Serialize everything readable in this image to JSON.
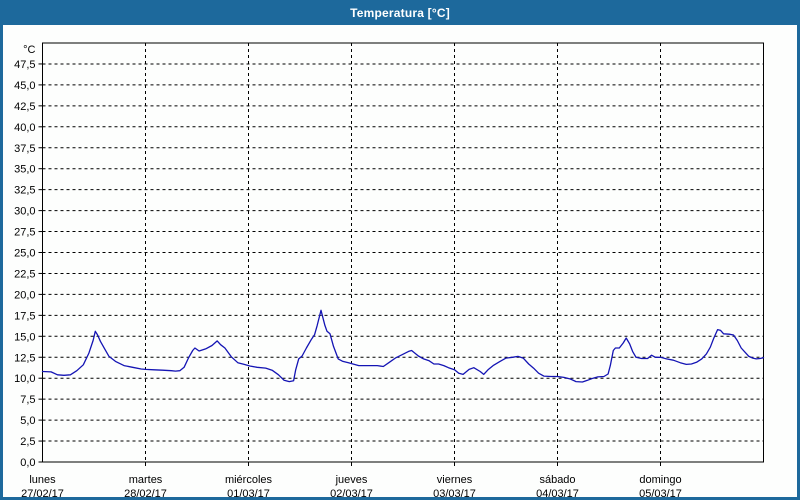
{
  "window": {
    "title": "Temperatura [°C]"
  },
  "colors": {
    "titlebar_bg": "#1d699c",
    "titlebar_text": "#ffffff",
    "window_border": "#1d699c",
    "plot_bg": "#fdfefd",
    "plot_border": "#000000",
    "gridline": "#000000",
    "series_line": "#1414b4",
    "tick_text": "#000000"
  },
  "chart_data": {
    "type": "line",
    "title": "Temperatura [°C]",
    "y_unit_label": "°C",
    "ylabel": "",
    "xlabel": "",
    "ylim": [
      0,
      50
    ],
    "y_tick_step": 2.5,
    "y_tick_labels": [
      "0,0",
      "2,5",
      "5,0",
      "7,5",
      "10,0",
      "12,5",
      "15,0",
      "17,5",
      "20,0",
      "22,5",
      "25,0",
      "27,5",
      "30,0",
      "32,5",
      "35,0",
      "37,5",
      "40,0",
      "42,5",
      "45,0",
      "47,5"
    ],
    "grid": "dashed",
    "legend": "none",
    "x_total_hours": 168,
    "x_days": [
      {
        "weekday": "lunes",
        "date": "27/02/17"
      },
      {
        "weekday": "martes",
        "date": "28/02/17"
      },
      {
        "weekday": "miércoles",
        "date": "01/03/17"
      },
      {
        "weekday": "jueves",
        "date": "02/03/17"
      },
      {
        "weekday": "viernes",
        "date": "03/03/17"
      },
      {
        "weekday": "sábado",
        "date": "04/03/17"
      },
      {
        "weekday": "domingo",
        "date": "05/03/17"
      }
    ],
    "series": [
      {
        "name": "Temperatura",
        "color": "#1414b4",
        "points_hours_temp": [
          [
            0,
            10.8
          ],
          [
            2,
            10.75
          ],
          [
            3.5,
            10.4
          ],
          [
            5,
            10.35
          ],
          [
            6.5,
            10.4
          ],
          [
            8,
            10.9
          ],
          [
            9.5,
            11.6
          ],
          [
            10.8,
            13.0
          ],
          [
            11.8,
            14.5
          ],
          [
            12.3,
            15.6
          ],
          [
            12.8,
            15.2
          ],
          [
            13.5,
            14.4
          ],
          [
            14.5,
            13.5
          ],
          [
            15.5,
            12.6
          ],
          [
            17,
            12.0
          ],
          [
            19,
            11.5
          ],
          [
            21,
            11.3
          ],
          [
            23,
            11.1
          ],
          [
            24,
            11.05
          ],
          [
            26,
            11.0
          ],
          [
            28,
            10.95
          ],
          [
            30,
            10.9
          ],
          [
            31,
            10.85
          ],
          [
            32,
            10.9
          ],
          [
            33,
            11.3
          ],
          [
            34,
            12.4
          ],
          [
            35,
            13.3
          ],
          [
            35.5,
            13.6
          ],
          [
            36.5,
            13.25
          ],
          [
            38,
            13.5
          ],
          [
            39.5,
            13.9
          ],
          [
            40.7,
            14.45
          ],
          [
            41.5,
            14.0
          ],
          [
            42.5,
            13.6
          ],
          [
            44,
            12.55
          ],
          [
            45.5,
            11.85
          ],
          [
            47,
            11.65
          ],
          [
            48.3,
            11.45
          ],
          [
            50,
            11.3
          ],
          [
            52,
            11.2
          ],
          [
            53.5,
            10.95
          ],
          [
            55,
            10.4
          ],
          [
            56.3,
            9.75
          ],
          [
            57.5,
            9.6
          ],
          [
            58.5,
            9.7
          ],
          [
            59,
            11.0
          ],
          [
            59.7,
            12.3
          ],
          [
            60.5,
            12.65
          ],
          [
            61.5,
            13.6
          ],
          [
            62.6,
            14.6
          ],
          [
            63.4,
            15.2
          ],
          [
            64,
            16.3
          ],
          [
            64.9,
            18.1
          ],
          [
            65.8,
            16.3
          ],
          [
            66.3,
            15.6
          ],
          [
            67,
            15.3
          ],
          [
            67.8,
            13.8
          ],
          [
            68.9,
            12.3
          ],
          [
            70,
            12.0
          ],
          [
            71.3,
            11.85
          ],
          [
            73.7,
            11.5
          ],
          [
            76,
            11.5
          ],
          [
            78,
            11.5
          ],
          [
            79.4,
            11.4
          ],
          [
            80.7,
            11.85
          ],
          [
            82.2,
            12.4
          ],
          [
            83.8,
            12.8
          ],
          [
            85.3,
            13.2
          ],
          [
            86,
            13.3
          ],
          [
            87.6,
            12.65
          ],
          [
            88.8,
            12.3
          ],
          [
            90,
            12.1
          ],
          [
            91.2,
            11.7
          ],
          [
            92.3,
            11.7
          ],
          [
            93.5,
            11.5
          ],
          [
            94.6,
            11.25
          ],
          [
            96,
            11.0
          ],
          [
            97,
            10.6
          ],
          [
            98,
            10.45
          ],
          [
            99.4,
            11.05
          ],
          [
            100.5,
            11.25
          ],
          [
            102,
            10.8
          ],
          [
            102.8,
            10.45
          ],
          [
            103.8,
            11.0
          ],
          [
            105,
            11.5
          ],
          [
            106.6,
            12.0
          ],
          [
            108,
            12.4
          ],
          [
            109.5,
            12.5
          ],
          [
            110.8,
            12.6
          ],
          [
            112,
            12.4
          ],
          [
            113.3,
            11.7
          ],
          [
            114.4,
            11.2
          ],
          [
            115.6,
            10.6
          ],
          [
            116.8,
            10.25
          ],
          [
            118.5,
            10.2
          ],
          [
            120,
            10.2
          ],
          [
            121.5,
            10.1
          ],
          [
            123,
            9.9
          ],
          [
            124.3,
            9.6
          ],
          [
            125.8,
            9.55
          ],
          [
            127,
            9.75
          ],
          [
            128.3,
            10.0
          ],
          [
            129.4,
            10.15
          ],
          [
            130.8,
            10.2
          ],
          [
            131.8,
            10.5
          ],
          [
            132.3,
            11.5
          ],
          [
            133,
            13.3
          ],
          [
            133.5,
            13.6
          ],
          [
            134.4,
            13.6
          ],
          [
            135.3,
            14.2
          ],
          [
            136,
            14.8
          ],
          [
            136.8,
            14.1
          ],
          [
            137.5,
            13.2
          ],
          [
            138.3,
            12.5
          ],
          [
            139.6,
            12.35
          ],
          [
            141,
            12.35
          ],
          [
            141.9,
            12.75
          ],
          [
            142.8,
            12.5
          ],
          [
            144,
            12.5
          ],
          [
            145.4,
            12.3
          ],
          [
            147,
            12.15
          ],
          [
            148.6,
            11.85
          ],
          [
            150,
            11.65
          ],
          [
            151.2,
            11.7
          ],
          [
            152.4,
            11.9
          ],
          [
            153.6,
            12.3
          ],
          [
            154.7,
            12.9
          ],
          [
            155.6,
            13.7
          ],
          [
            156.4,
            14.75
          ],
          [
            157.3,
            15.8
          ],
          [
            158,
            15.7
          ],
          [
            158.7,
            15.3
          ],
          [
            160,
            15.25
          ],
          [
            161,
            15.15
          ],
          [
            161.9,
            14.5
          ],
          [
            162.8,
            13.6
          ],
          [
            163.7,
            13.1
          ],
          [
            164.6,
            12.6
          ],
          [
            165.5,
            12.4
          ],
          [
            166.3,
            12.3
          ],
          [
            167.2,
            12.35
          ],
          [
            168,
            12.45
          ]
        ]
      }
    ]
  }
}
